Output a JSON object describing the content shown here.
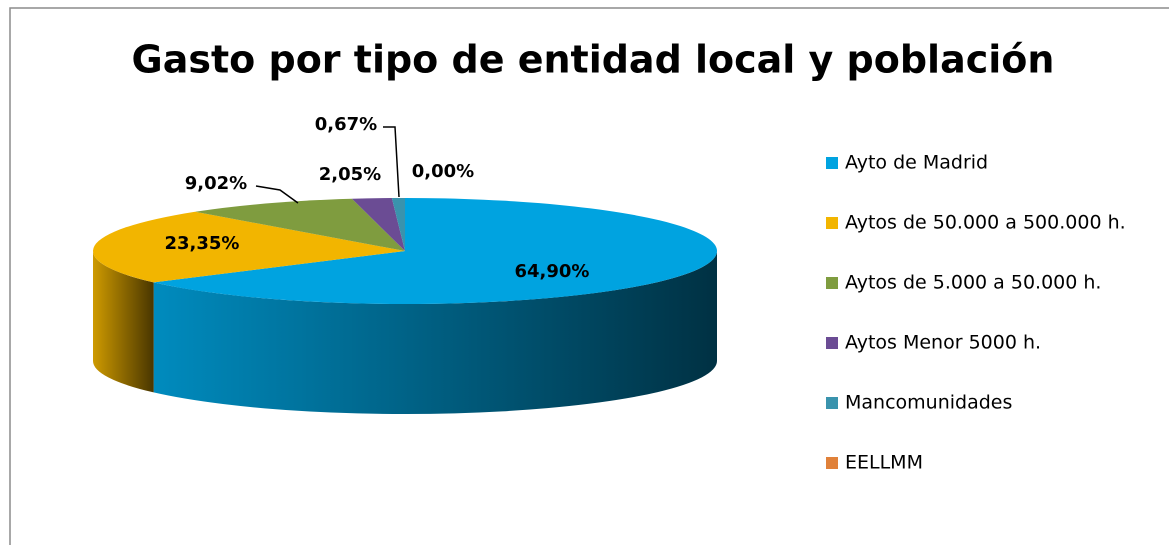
{
  "chart_data": {
    "type": "pie3d",
    "title": "Gasto por tipo de entidad local y población",
    "categories": [
      "Ayto de Madrid",
      "Aytos de 50.000 a 500.000 h.",
      "Aytos de 5.000 a 50.000 h.",
      "Aytos Menor 5000 h.",
      "Mancomunidades",
      "EELLMM"
    ],
    "values": [
      64.9,
      23.35,
      9.02,
      2.05,
      0.67,
      0.0
    ],
    "value_labels": [
      "64,90%",
      "23,35%",
      "9,02%",
      "2,05%",
      "0,67%",
      "0,00%"
    ],
    "colors": [
      "#00a3e0",
      "#f2b500",
      "#7f9c3f",
      "#6b4c94",
      "#3a93ad",
      "#e0813a"
    ],
    "legend": "right"
  }
}
